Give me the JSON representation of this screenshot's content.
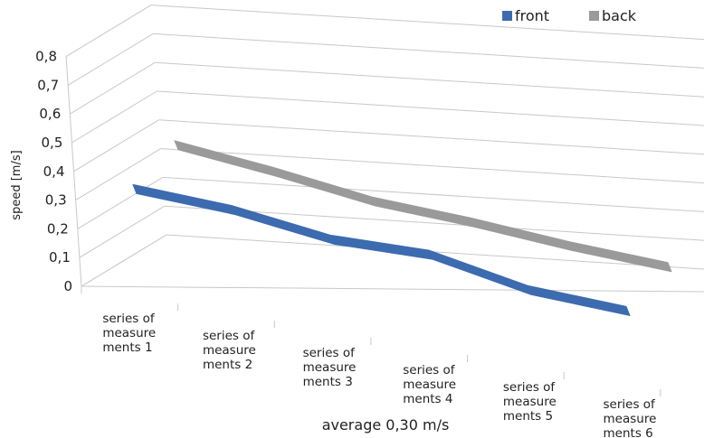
{
  "chart_data": {
    "type": "line",
    "style": "3d-ribbon",
    "categories": [
      [
        "series of",
        "measure",
        "ments 1"
      ],
      [
        "series of",
        "measure",
        "ments 2"
      ],
      [
        "series of",
        "measure",
        "ments 3"
      ],
      [
        "series of",
        "measure",
        "ments 4"
      ],
      [
        "series of",
        "measure",
        "ments 5"
      ],
      [
        "series of",
        "measure",
        "ments 6"
      ]
    ],
    "series": [
      {
        "name": "front",
        "color": "#3c6bb0",
        "values": [
          0.31,
          0.3,
          0.26,
          0.27,
          0.21,
          0.2
        ]
      },
      {
        "name": "back",
        "color": "#9a9a9a",
        "values": [
          0.4,
          0.37,
          0.33,
          0.32,
          0.3,
          0.29
        ]
      }
    ],
    "yticks": [
      "0",
      "0,1",
      "0,2",
      "0,3",
      "0,4",
      "0,5",
      "0,6",
      "0,7",
      "0,8"
    ],
    "ylim": [
      0,
      0.8
    ],
    "ylabel": "speed  [m/s]",
    "xlabel": "average 0,30 m/s",
    "legend_position": "top-right",
    "grid": true
  }
}
